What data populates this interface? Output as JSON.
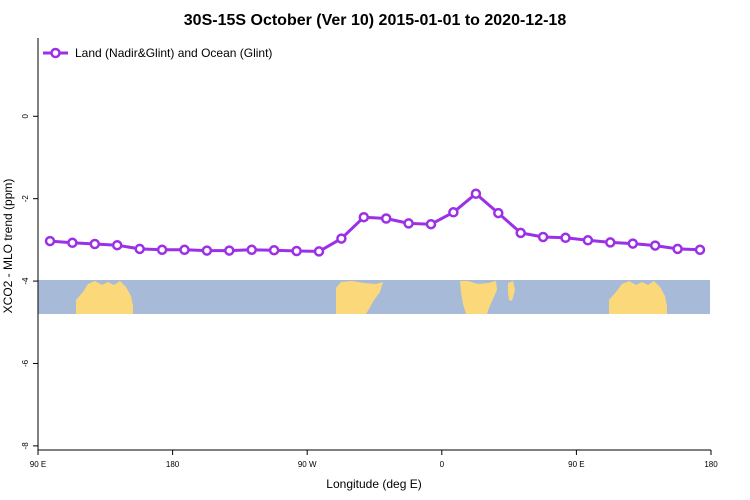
{
  "chart_data": {
    "type": "line",
    "title": "30S-15S October (Ver 10)   2015-01-01 to 2020-12-18",
    "xlabel": "Longitude (deg E)",
    "ylabel": "XCO2 - MLO trend (ppm)",
    "x_tick_labels": [
      "90 E",
      "180",
      "90 W",
      "0",
      "90 E",
      "180"
    ],
    "y_tick_labels": [
      "0",
      "-2",
      "-4",
      "-6",
      "-8"
    ],
    "y_ticks": [
      0,
      -2,
      -4,
      -6,
      -8
    ],
    "ylim": [
      -8.1,
      1.9
    ],
    "grid": false,
    "legend_position": "top-left",
    "colors": {
      "series": "#9b30e6",
      "ocean": "#a7bbd8",
      "land": "#fbd97a"
    },
    "series": [
      {
        "name": "Land (Nadir&Glint) and Ocean (Glint)",
        "values": [
          -3.03,
          -3.07,
          -3.1,
          -3.13,
          -3.22,
          -3.24,
          -3.24,
          -3.26,
          -3.26,
          -3.24,
          -3.25,
          -3.27,
          -3.28,
          -2.97,
          -2.45,
          -2.48,
          -2.6,
          -2.62,
          -2.33,
          -1.88,
          -2.35,
          -2.83,
          -2.93,
          -2.95,
          -3.01,
          -3.06,
          -3.09,
          -3.14,
          -3.22,
          -3.24
        ]
      }
    ]
  }
}
